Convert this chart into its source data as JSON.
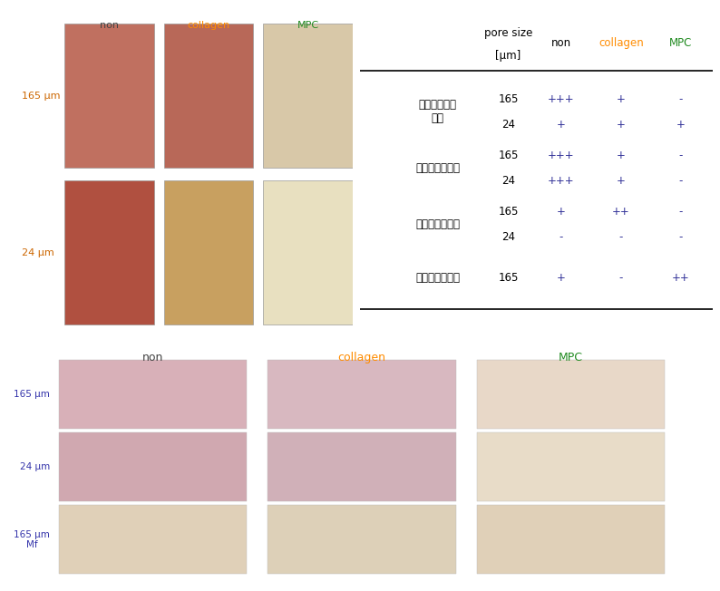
{
  "bg_color": "#ffffff",
  "table": {
    "rows": [
      {
        "label": "カプセル化層\n形成",
        "sizes": [
          "165",
          "24"
        ],
        "non": [
          "+++",
          "+"
        ],
        "collagen": [
          "+",
          "+"
        ],
        "MPC": [
          "-",
          "+"
        ]
      },
      {
        "label": "血管新生（外）",
        "sizes": [
          "165",
          "24"
        ],
        "non": [
          "+++",
          "+++"
        ],
        "collagen": [
          "+",
          "+"
        ],
        "MPC": [
          "-",
          "-"
        ]
      },
      {
        "label": "血管新生（内）",
        "sizes": [
          "165",
          "24"
        ],
        "non": [
          "+",
          "-"
        ],
        "collagen": [
          "++",
          "-"
        ],
        "MPC": [
          "-",
          "-"
        ]
      },
      {
        "label": "マクロファージ",
        "sizes": [
          "165"
        ],
        "non": [
          "+"
        ],
        "collagen": [
          "-"
        ],
        "MPC": [
          "++"
        ]
      }
    ]
  },
  "top_col_labels": [
    "non",
    "collagen",
    "MPC"
  ],
  "top_col_colors": [
    "#444444",
    "#ff8c00",
    "#228b22"
  ],
  "top_row_labels": [
    "165 μm",
    "24 μm"
  ],
  "bottom_col_labels": [
    "non",
    "collagen",
    "MPC"
  ],
  "bottom_col_colors": [
    "#444444",
    "#ff8c00",
    "#228b22"
  ],
  "bottom_col_border_colors": [
    "#808080",
    "#ff9900",
    "#1a7a00"
  ],
  "bottom_row_labels": [
    "165 μm",
    "24 μm",
    "165 μm\nMf"
  ],
  "bottom_row_label_color": "#3333aa",
  "top_row_label_color": "#cc6600",
  "img_colors_top": [
    [
      "#c07060",
      "#b86858",
      "#d8c8a8"
    ],
    [
      "#b05040",
      "#c8a060",
      "#e8e0c0"
    ]
  ],
  "img_colors_bottom": [
    [
      "#d8b0b8",
      "#d8b8c0",
      "#e8d8c8"
    ],
    [
      "#d0a8b0",
      "#d0b0b8",
      "#e8dcc8"
    ],
    [
      "#e0d0b8",
      "#ddd0b8",
      "#e0d0b8"
    ]
  ],
  "non_border": "#808080",
  "collagen_border": "#ff9900",
  "MPC_border": "#1a7a00"
}
